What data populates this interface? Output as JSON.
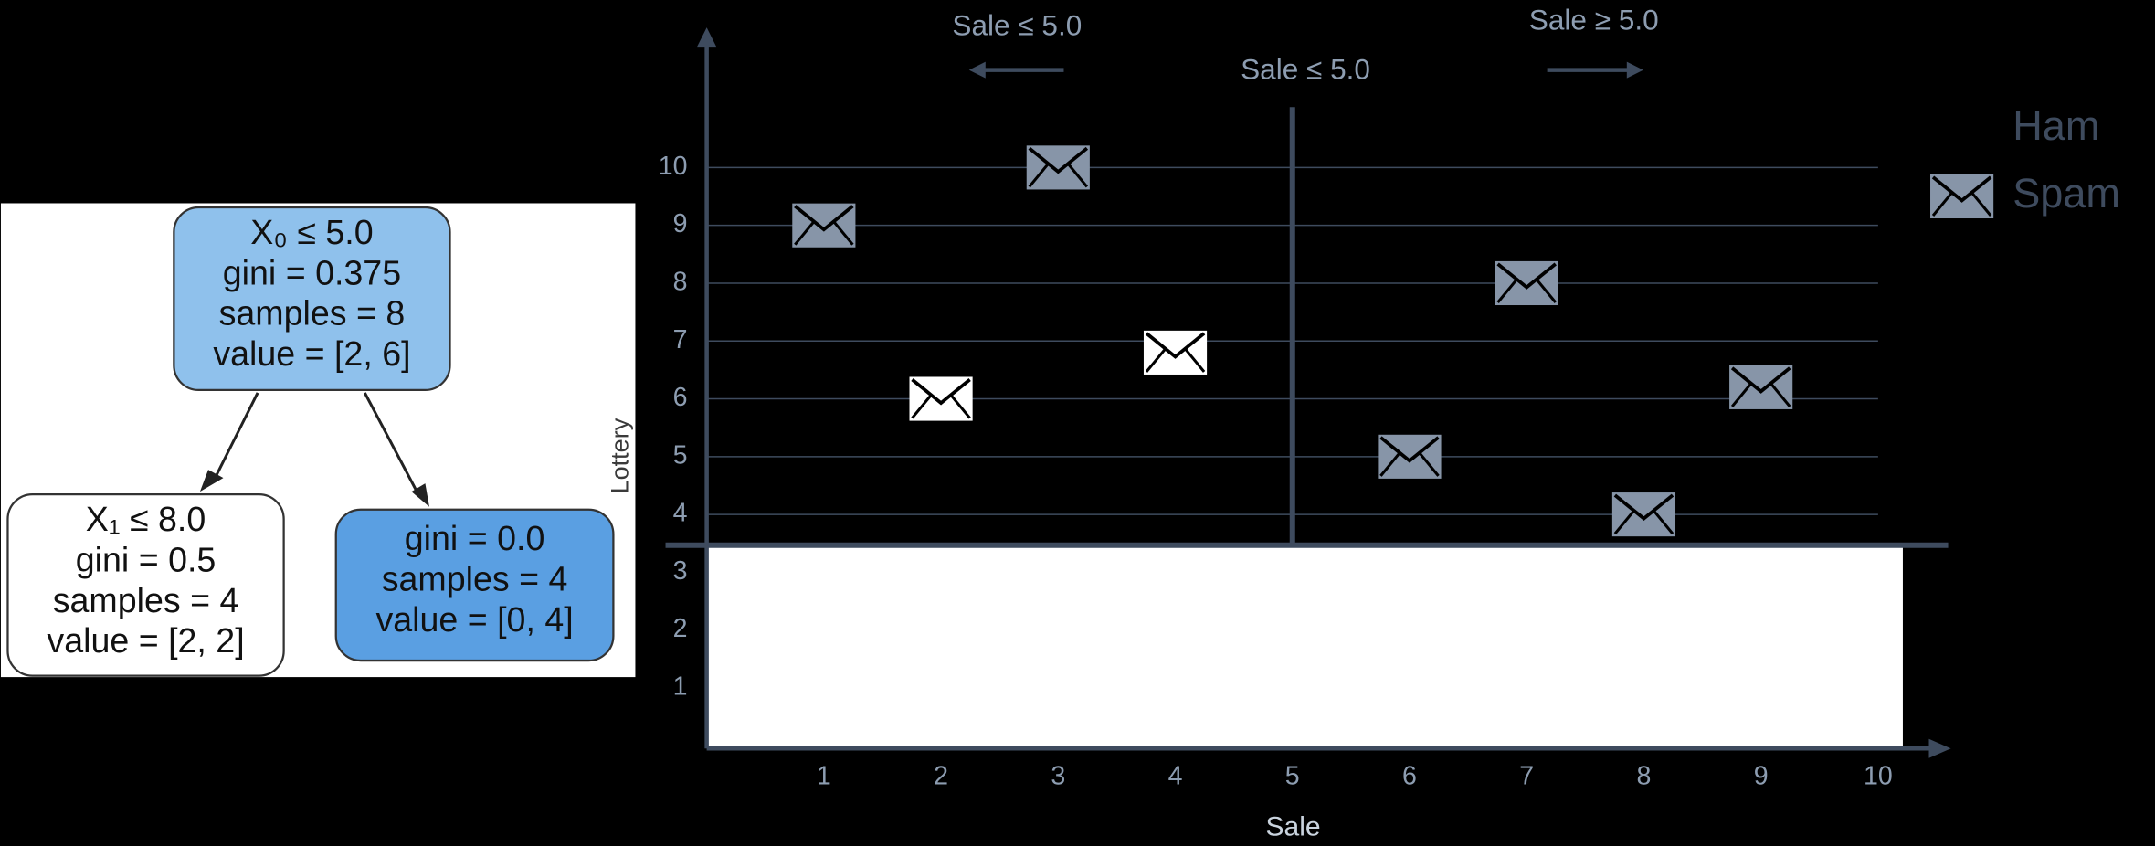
{
  "tree": {
    "nodes": [
      {
        "lines": [
          "X₀ ≤ 5.0",
          "gini = 0.375",
          "samples = 8",
          "value = [2, 6]"
        ],
        "color": "#8fc1ec"
      },
      {
        "lines": [
          "X₁ ≤ 8.0",
          "gini = 0.5",
          "samples = 4",
          "value = [2, 2]"
        ],
        "color": "#ffffff"
      },
      {
        "lines": [
          "gini = 0.0",
          "samples = 4",
          "value = [0, 4]"
        ],
        "color": "#5a9fe2"
      }
    ]
  },
  "chart_data": {
    "type": "scatter",
    "x_label": "Sale",
    "y_label": "Lottery",
    "annotations": [
      "Sale ≤ 5.0",
      "Sale ≤ 5.0",
      "Sale ≥ 5.0"
    ],
    "split": 5,
    "series": [
      {
        "name": "Ham",
        "color": "#ffffff",
        "x": [
          2,
          4
        ],
        "values": [
          6,
          6.8
        ]
      },
      {
        "name": "Spam",
        "color": "#8795a8",
        "x": [
          1,
          3,
          6,
          7,
          8,
          9
        ],
        "values": [
          9,
          10,
          5,
          8,
          4,
          6.2
        ]
      }
    ],
    "xlim": [
      0,
      10
    ],
    "ylim": [
      0,
      10
    ],
    "xticks": [
      1,
      2,
      3,
      4,
      5,
      6,
      7,
      8,
      9,
      10
    ],
    "yticks": [
      1,
      2,
      3,
      4,
      5,
      6,
      7,
      8,
      9,
      10
    ],
    "grid": true,
    "legend": "right"
  }
}
